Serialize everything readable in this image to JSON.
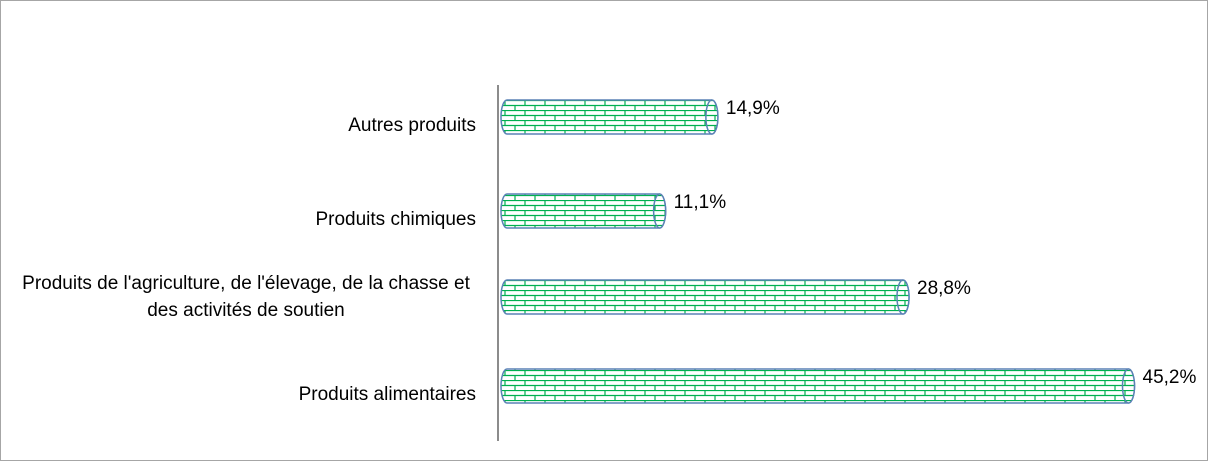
{
  "chart_data": {
    "type": "bar",
    "orientation": "horizontal",
    "categories": [
      "Autres produits",
      "Produits chimiques",
      "Produits de l'agriculture, de l'élevage, de la chasse et des activités de soutien",
      "Produits alimentaires"
    ],
    "values": [
      14.9,
      11.1,
      28.8,
      45.2
    ],
    "value_labels": [
      "14,9%",
      "11,1%",
      "28,8%",
      "45,2%"
    ],
    "color": "#00b050"
  }
}
